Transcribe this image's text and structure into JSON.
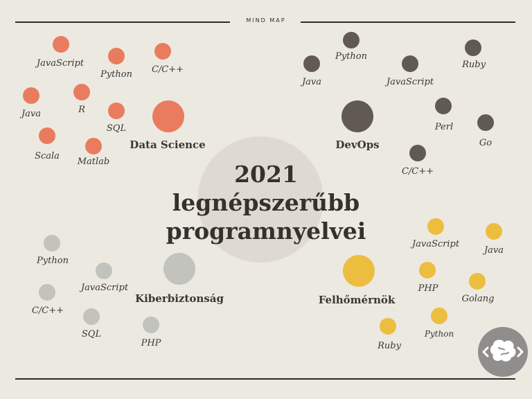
{
  "header": {
    "label": "MIND MAP"
  },
  "title": {
    "line1": "2021",
    "line2": "legnépszerűbb",
    "line3": "programnyelvei"
  },
  "colors": {
    "data_science": "#e97c5e",
    "devops": "#605a52",
    "cyber": "#c1c3bc",
    "cloud": "#edbd3f"
  },
  "groups": {
    "data_science": {
      "hub": "Data Science",
      "items": [
        "JavaScript",
        "Python",
        "C/C++",
        "Java",
        "R",
        "SQL",
        "Scala",
        "Matlab"
      ]
    },
    "devops": {
      "hub": "DevOps",
      "items": [
        "Python",
        "Java",
        "JavaScript",
        "Ruby",
        "Perl",
        "Go",
        "C/C++"
      ]
    },
    "cyber": {
      "hub": "Kiberbiztonság",
      "items": [
        "Python",
        "JavaScript",
        "C/C++",
        "SQL",
        "PHP"
      ]
    },
    "cloud": {
      "hub": "Felhőmérnök",
      "items": [
        "JavaScript",
        "Java",
        "PHP",
        "Golang",
        "Ruby",
        "Python"
      ]
    }
  },
  "logo": {
    "icon": "brain-code-icon"
  }
}
